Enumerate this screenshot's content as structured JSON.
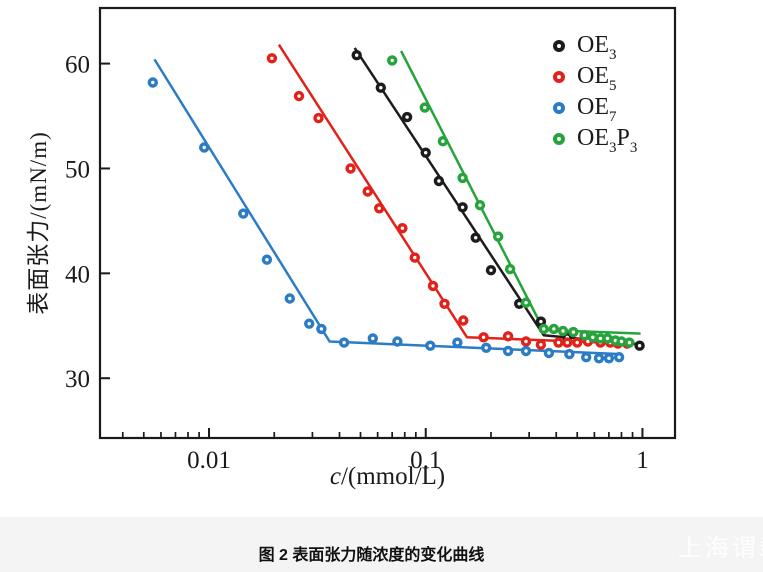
{
  "figure": {
    "caption": "图 2  表面张力随浓度的变化曲线",
    "watermark": "上海谓载"
  },
  "colors": {
    "ink": "#1a1a1a",
    "black": "#1c1c1c",
    "red": "#e2221a",
    "blue": "#2b7cc5",
    "green": "#27a33c",
    "caption_band": "#f4f4f4",
    "watermark_text": "#ffffff",
    "plot_background": "#ffffff"
  },
  "chart_data": {
    "type": "scatter",
    "title": "",
    "x_axis": {
      "label_italic": "c",
      "label_rest": "/(mmol/L)",
      "scale": "log",
      "min": 0.00314,
      "max": 1.413,
      "major_ticks": [
        {
          "value": 0.01,
          "label": "0.01"
        },
        {
          "value": 0.1,
          "label": "0.1"
        },
        {
          "value": 1,
          "label": "1"
        }
      ],
      "minor_ticks": [
        0.004,
        0.005,
        0.006,
        0.007,
        0.008,
        0.009,
        0.02,
        0.03,
        0.04,
        0.05,
        0.06,
        0.07,
        0.08,
        0.09,
        0.2,
        0.3,
        0.4,
        0.5,
        0.6,
        0.7,
        0.8,
        0.9
      ]
    },
    "y_axis": {
      "label": "表面张力/(mN/m)",
      "scale": "linear",
      "min": 24.3,
      "max": 65.3,
      "major_ticks": [
        {
          "value": 30,
          "label": "30"
        },
        {
          "value": 40,
          "label": "40"
        },
        {
          "value": 50,
          "label": "50"
        },
        {
          "value": 60,
          "label": "60"
        }
      ]
    },
    "grid": "off",
    "legend_position": "top-right-inside",
    "series": [
      {
        "id": "oe3",
        "name_parts": [
          "OE",
          "3"
        ],
        "color_key": "black",
        "points": [
          [
            0.048,
            60.8
          ],
          [
            0.062,
            57.7
          ],
          [
            0.082,
            54.9
          ],
          [
            0.1,
            51.5
          ],
          [
            0.115,
            48.8
          ],
          [
            0.148,
            46.3
          ],
          [
            0.17,
            43.4
          ],
          [
            0.2,
            40.3
          ],
          [
            0.27,
            37.1
          ],
          [
            0.34,
            35.4
          ],
          [
            0.45,
            33.9
          ],
          [
            0.56,
            33.8
          ],
          [
            0.97,
            33.1
          ]
        ],
        "fit_line": [
          [
            0.047,
            61.5
          ],
          [
            0.35,
            34.1
          ],
          [
            0.95,
            33.25
          ]
        ]
      },
      {
        "id": "oe5",
        "name_parts": [
          "OE",
          "5"
        ],
        "color_key": "red",
        "points": [
          [
            0.0195,
            60.5
          ],
          [
            0.026,
            56.9
          ],
          [
            0.032,
            54.8
          ],
          [
            0.045,
            50.0
          ],
          [
            0.054,
            47.8
          ],
          [
            0.061,
            46.2
          ],
          [
            0.078,
            44.3
          ],
          [
            0.089,
            41.5
          ],
          [
            0.108,
            38.8
          ],
          [
            0.122,
            37.1
          ],
          [
            0.149,
            35.5
          ],
          [
            0.185,
            33.9
          ],
          [
            0.24,
            34.0
          ],
          [
            0.29,
            33.5
          ],
          [
            0.34,
            33.2
          ],
          [
            0.41,
            33.4
          ],
          [
            0.45,
            33.4
          ],
          [
            0.5,
            33.4
          ],
          [
            0.56,
            33.5
          ],
          [
            0.64,
            33.4
          ],
          [
            0.71,
            33.4
          ],
          [
            0.77,
            33.3
          ],
          [
            0.85,
            33.3
          ]
        ],
        "fit_line": [
          [
            0.021,
            61.8
          ],
          [
            0.155,
            33.9
          ],
          [
            0.88,
            33.3
          ]
        ]
      },
      {
        "id": "oe7",
        "name_parts": [
          "OE",
          "7"
        ],
        "color_key": "blue",
        "points": [
          [
            0.0055,
            58.2
          ],
          [
            0.0095,
            52.0
          ],
          [
            0.0144,
            45.7
          ],
          [
            0.0185,
            41.3
          ],
          [
            0.0236,
            37.6
          ],
          [
            0.029,
            35.2
          ],
          [
            0.033,
            34.7
          ],
          [
            0.042,
            33.4
          ],
          [
            0.057,
            33.8
          ],
          [
            0.074,
            33.5
          ],
          [
            0.105,
            33.1
          ],
          [
            0.14,
            33.4
          ],
          [
            0.19,
            32.9
          ],
          [
            0.24,
            32.6
          ],
          [
            0.29,
            32.6
          ],
          [
            0.37,
            32.4
          ],
          [
            0.46,
            32.3
          ],
          [
            0.55,
            32.0
          ],
          [
            0.63,
            31.9
          ],
          [
            0.7,
            31.9
          ],
          [
            0.78,
            32.0
          ]
        ],
        "fit_line": [
          [
            0.0056,
            60.4
          ],
          [
            0.036,
            33.5
          ],
          [
            0.8,
            32.3
          ]
        ]
      },
      {
        "id": "oe3p3",
        "name_parts": [
          "OE",
          "3",
          "P",
          "3"
        ],
        "color_key": "green",
        "points": [
          [
            0.07,
            60.3
          ],
          [
            0.099,
            55.8
          ],
          [
            0.12,
            52.6
          ],
          [
            0.148,
            49.1
          ],
          [
            0.178,
            46.5
          ],
          [
            0.216,
            43.5
          ],
          [
            0.245,
            40.4
          ],
          [
            0.29,
            37.2
          ],
          [
            0.35,
            34.7
          ],
          [
            0.39,
            34.7
          ],
          [
            0.43,
            34.5
          ],
          [
            0.48,
            34.4
          ],
          [
            0.54,
            34.1
          ],
          [
            0.59,
            33.9
          ],
          [
            0.64,
            33.8
          ],
          [
            0.69,
            33.8
          ],
          [
            0.75,
            33.6
          ],
          [
            0.8,
            33.5
          ],
          [
            0.87,
            33.4
          ]
        ],
        "fit_line": [
          [
            0.077,
            61.2
          ],
          [
            0.35,
            34.6
          ],
          [
            0.98,
            34.25
          ]
        ]
      }
    ]
  }
}
